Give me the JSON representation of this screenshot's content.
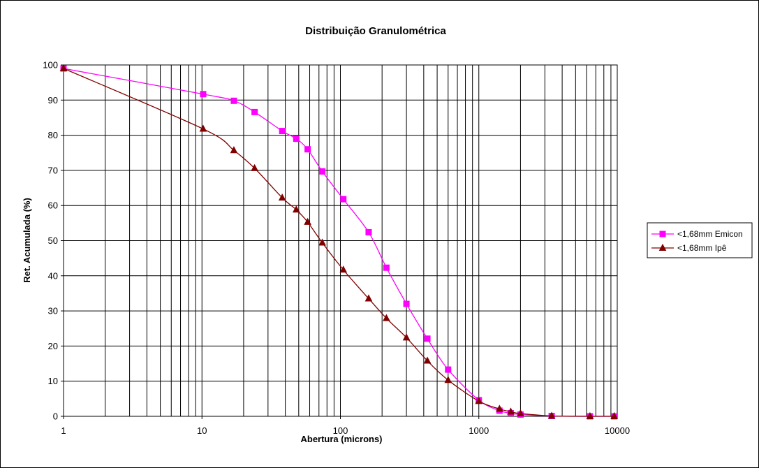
{
  "chart_data": {
    "type": "line",
    "title": "Distribuição Granulométrica",
    "xlabel": "Abertura (microns)",
    "ylabel": "Ret. Acumulada (%)",
    "x_scale": "log",
    "xlim": [
      1,
      10000
    ],
    "ylim": [
      0,
      100
    ],
    "x_ticks": [
      "1",
      "10",
      "100",
      "1000",
      "10000"
    ],
    "y_ticks": [
      "0",
      "10",
      "20",
      "30",
      "40",
      "50",
      "60",
      "70",
      "80",
      "90",
      "100"
    ],
    "grid": true,
    "legend_position": "right",
    "series": [
      {
        "name": "<1,68mm Emicon",
        "color": "#ff00ff",
        "marker": "square",
        "x": [
          1,
          10.2,
          17,
          24,
          38,
          48,
          58,
          74,
          105,
          160,
          215,
          300,
          425,
          600,
          1000,
          1410,
          1700,
          2000,
          3360,
          6350,
          9500
        ],
        "y": [
          99,
          91.7,
          89.8,
          86.6,
          81.2,
          79.0,
          76.0,
          69.7,
          61.8,
          52.4,
          42.3,
          32.0,
          22.1,
          13.3,
          4.6,
          1.6,
          0.9,
          0.5,
          0.1,
          0.0,
          0.0
        ]
      },
      {
        "name": "<1,68mm Ipê",
        "color": "#800000",
        "marker": "triangle",
        "x": [
          1,
          10.2,
          17,
          24,
          38,
          48,
          58,
          74,
          105,
          160,
          215,
          300,
          425,
          600,
          1000,
          1410,
          1700,
          2000,
          3360,
          6350,
          9500
        ],
        "y": [
          99,
          81.8,
          75.7,
          70.6,
          62.2,
          58.8,
          55.3,
          49.4,
          41.7,
          33.5,
          27.9,
          22.4,
          15.8,
          10.3,
          4.3,
          2.1,
          1.3,
          0.8,
          0.1,
          0.0,
          0.0
        ]
      }
    ]
  }
}
